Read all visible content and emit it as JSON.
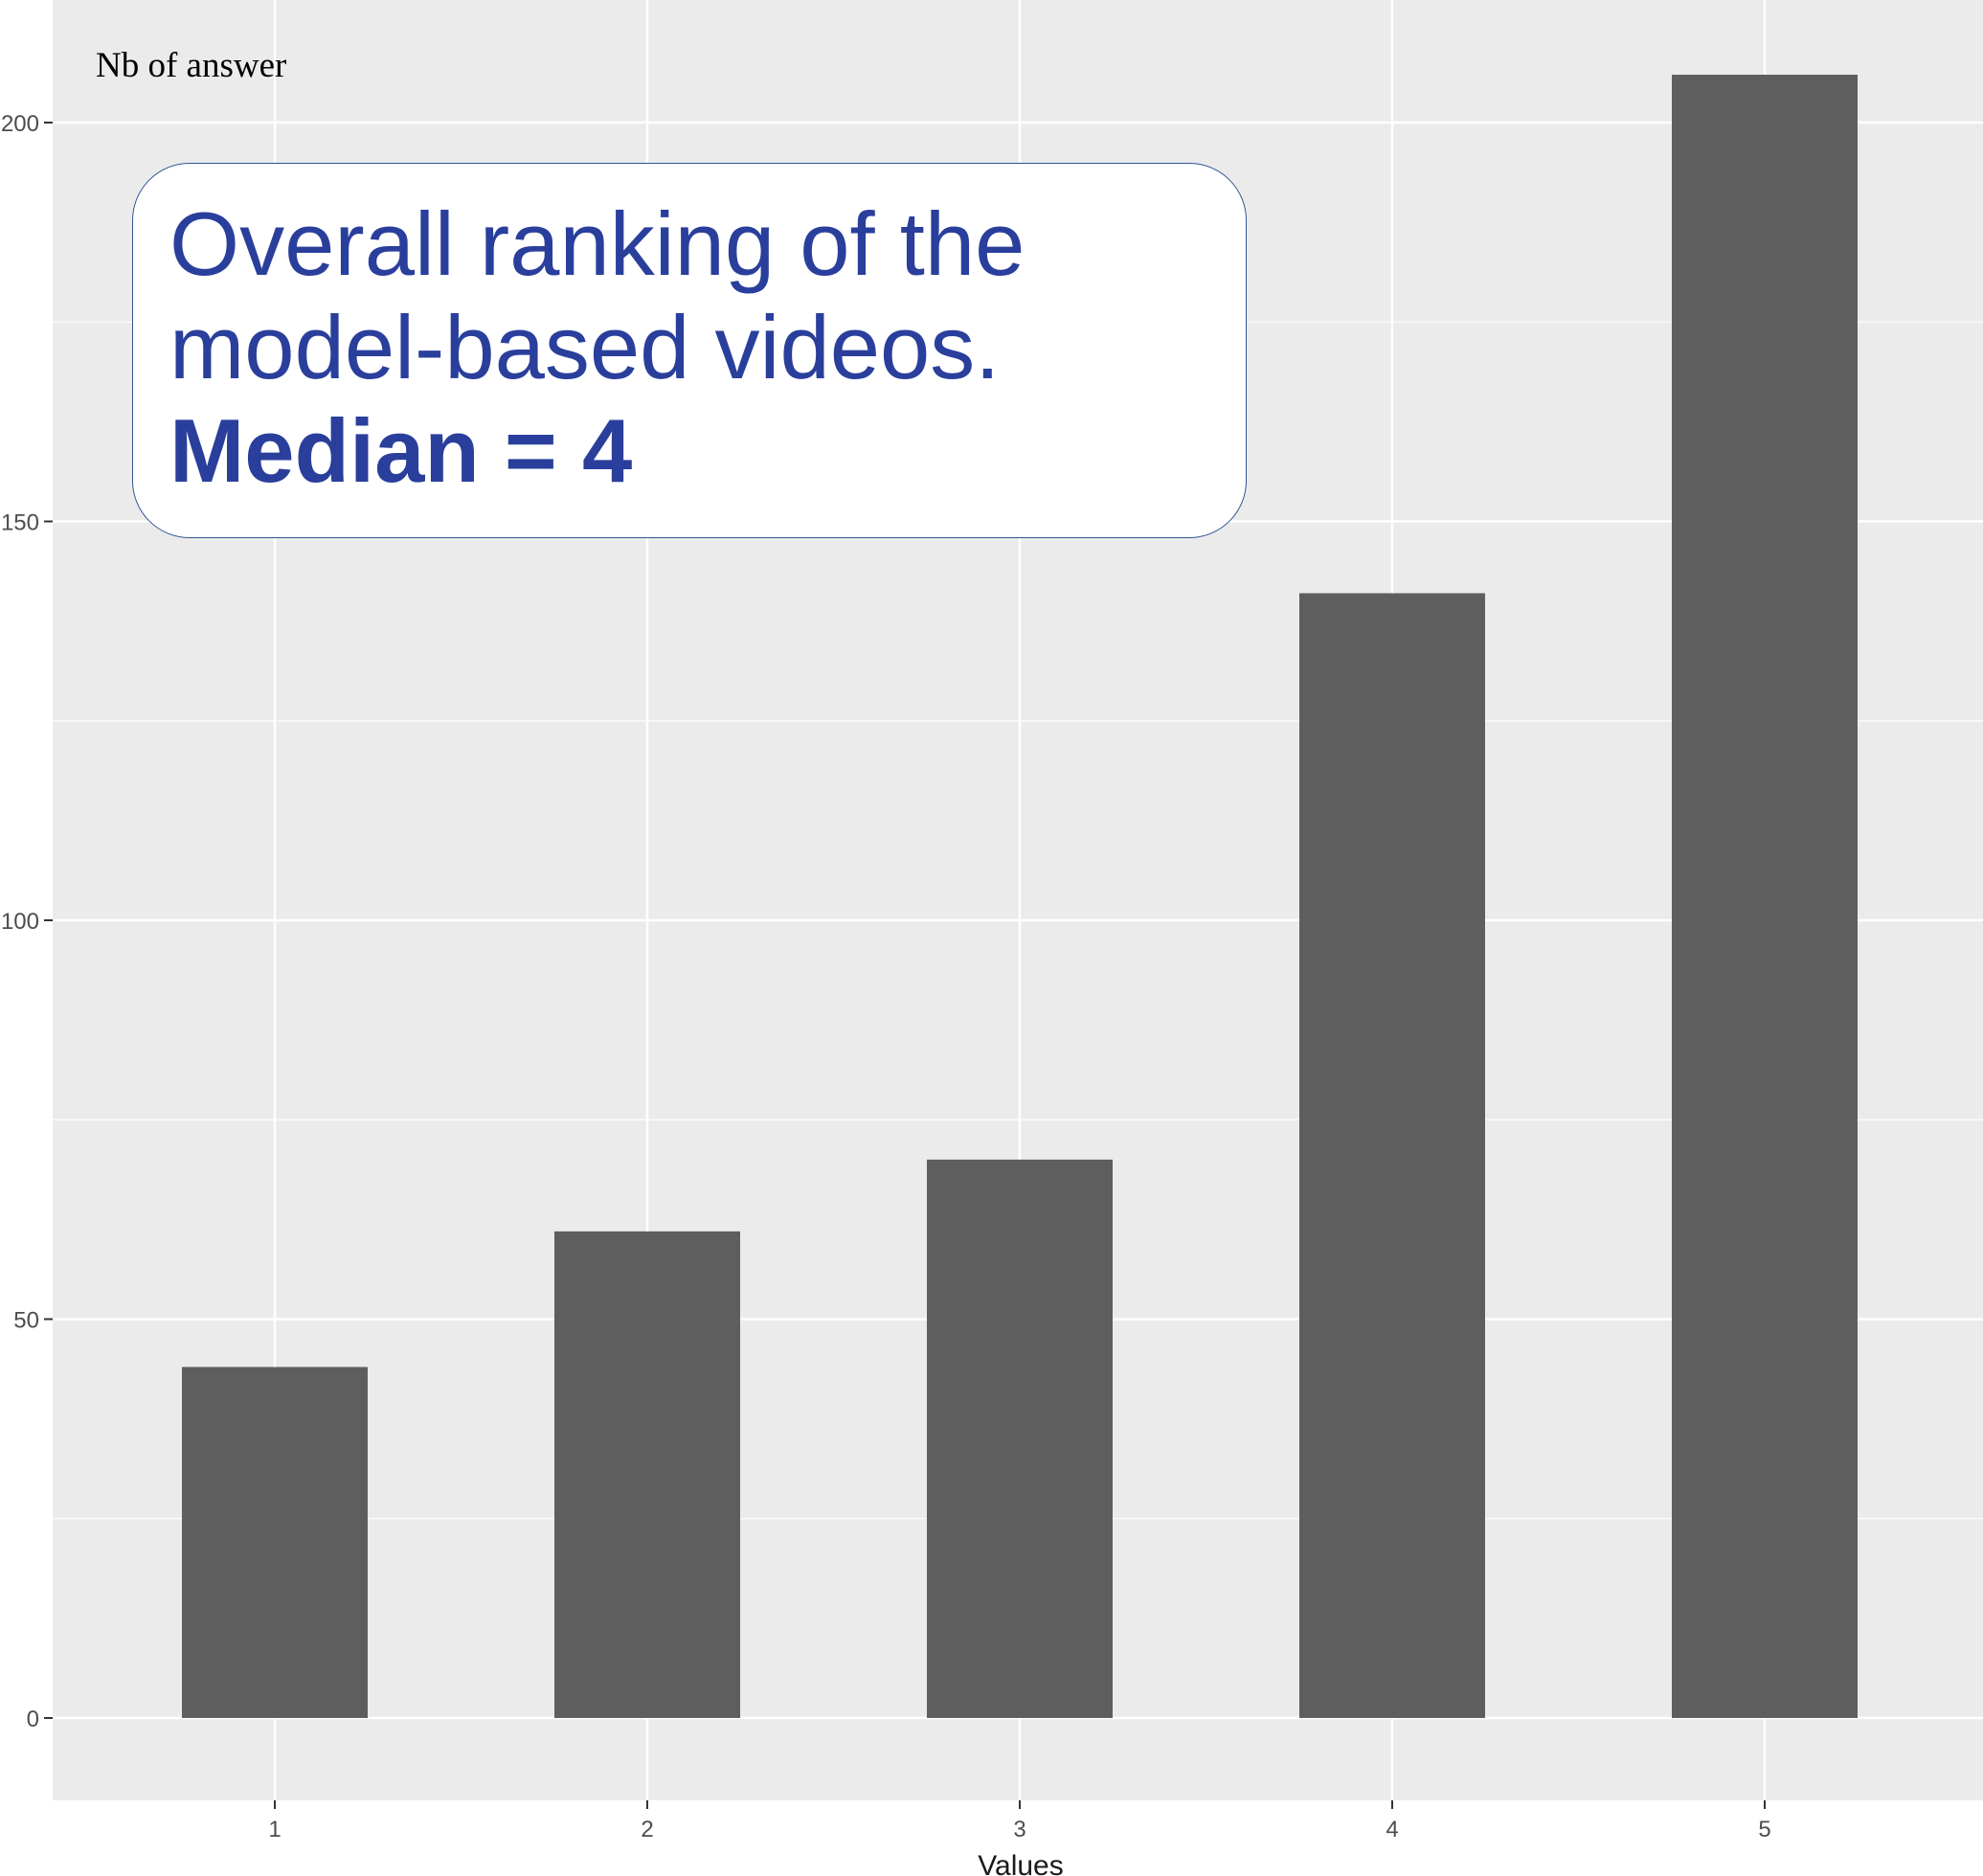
{
  "chart_data": {
    "type": "bar",
    "categories": [
      "1",
      "2",
      "3",
      "4",
      "5"
    ],
    "values": [
      44,
      61,
      70,
      141,
      206
    ],
    "title": "",
    "xlabel": "Values",
    "ylabel": "Nb of answer",
    "ylim": [
      -10,
      210
    ],
    "yticks": [
      0,
      50,
      100,
      150,
      200
    ],
    "ytick_labels": [
      "0",
      "50",
      "100",
      "150",
      "200"
    ],
    "grid": true,
    "bar_color": "#5e5e5e",
    "panel_color": "#ebebeb",
    "gridline_color": "#ffffff"
  },
  "annotation": {
    "line1": "Overall ranking of the",
    "line2": "model-based videos.",
    "line3": "Median = 4",
    "text_color": "#2a3f9c",
    "border_color": "#2f5597"
  }
}
